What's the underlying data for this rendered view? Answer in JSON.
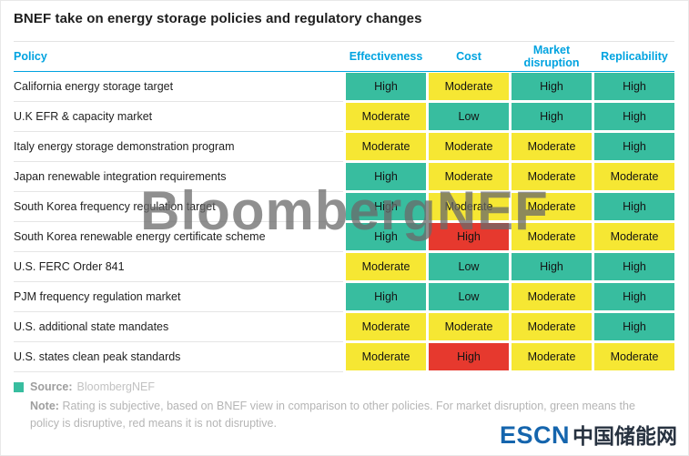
{
  "title": "BNEF take on energy storage policies and regulatory changes",
  "watermark": "BloombergNEF",
  "footer": {
    "source_label": "Source:",
    "source_value": "BloombergNEF",
    "note_label": "Note:",
    "note_text": "Rating is subjective, based on BNEF view in comparison to other policies. For market disruption, green means the policy is disruptive, red means it is not disruptive."
  },
  "logo": {
    "escn": "ESCN",
    "chinese": "中国储能网"
  },
  "colors": {
    "header_text": "#00a3e0",
    "green": "#38bd9f",
    "yellow": "#f6e733",
    "red": "#e6392e",
    "logo_blue": "#1565ad"
  },
  "chart_data": {
    "type": "table",
    "title": "BNEF take on energy storage policies and regulatory changes",
    "row_header": "Policy",
    "columns": [
      "Effectiveness",
      "Cost",
      "Market disruption",
      "Replicability"
    ],
    "color_map": {
      "green": "#38bd9f",
      "yellow": "#f6e733",
      "red": "#e6392e"
    },
    "legend_note": "green means the policy is disruptive, red means it is not disruptive",
    "rows": [
      {
        "policy": "California energy storage target",
        "ratings": [
          "High",
          "Moderate",
          "High",
          "High"
        ],
        "colors": [
          "green",
          "yellow",
          "green",
          "green"
        ]
      },
      {
        "policy": "U.K EFR & capacity market",
        "ratings": [
          "Moderate",
          "Low",
          "High",
          "High"
        ],
        "colors": [
          "yellow",
          "green",
          "green",
          "green"
        ]
      },
      {
        "policy": "Italy energy storage demonstration program",
        "ratings": [
          "Moderate",
          "Moderate",
          "Moderate",
          "High"
        ],
        "colors": [
          "yellow",
          "yellow",
          "yellow",
          "green"
        ]
      },
      {
        "policy": "Japan renewable integration requirements",
        "ratings": [
          "High",
          "Moderate",
          "Moderate",
          "Moderate"
        ],
        "colors": [
          "green",
          "yellow",
          "yellow",
          "yellow"
        ]
      },
      {
        "policy": "South Korea frequency regulation target",
        "ratings": [
          "High",
          "Moderate",
          "Moderate",
          "High"
        ],
        "colors": [
          "green",
          "yellow",
          "yellow",
          "green"
        ]
      },
      {
        "policy": "South Korea renewable energy certificate scheme",
        "ratings": [
          "High",
          "High",
          "Moderate",
          "Moderate"
        ],
        "colors": [
          "green",
          "red",
          "yellow",
          "yellow"
        ]
      },
      {
        "policy": "U.S. FERC Order 841",
        "ratings": [
          "Moderate",
          "Low",
          "High",
          "High"
        ],
        "colors": [
          "yellow",
          "green",
          "green",
          "green"
        ]
      },
      {
        "policy": "PJM frequency regulation market",
        "ratings": [
          "High",
          "Low",
          "Moderate",
          "High"
        ],
        "colors": [
          "green",
          "green",
          "yellow",
          "green"
        ]
      },
      {
        "policy": "U.S. additional state mandates",
        "ratings": [
          "Moderate",
          "Moderate",
          "Moderate",
          "High"
        ],
        "colors": [
          "yellow",
          "yellow",
          "yellow",
          "green"
        ]
      },
      {
        "policy": "U.S. states clean peak standards",
        "ratings": [
          "Moderate",
          "High",
          "Moderate",
          "Moderate"
        ],
        "colors": [
          "yellow",
          "red",
          "yellow",
          "yellow"
        ]
      }
    ]
  }
}
